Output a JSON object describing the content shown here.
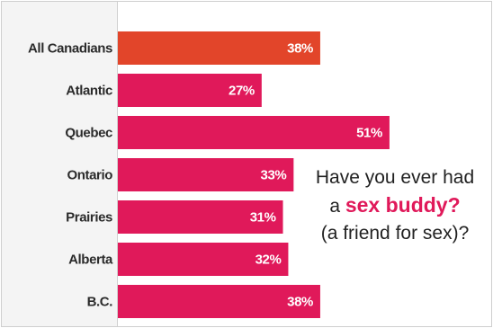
{
  "chart_data": {
    "type": "bar",
    "orientation": "horizontal",
    "categories": [
      "All Canadians",
      "Atlantic",
      "Quebec",
      "Ontario",
      "Prairies",
      "Alberta",
      "B.C."
    ],
    "values": [
      38,
      27,
      51,
      33,
      31,
      32,
      38
    ],
    "value_labels": [
      "38%",
      "27%",
      "51%",
      "33%",
      "31%",
      "32%",
      "38%"
    ],
    "unit": "%",
    "xlim": [
      0,
      51
    ],
    "grid": false,
    "legend": "none",
    "highlight_index": 0,
    "colors": {
      "highlight": "#e2452a",
      "bar": "#e0195a",
      "label": "#2b2b2b",
      "value_text": "#ffffff"
    }
  },
  "question": {
    "line1": "Have you ever had",
    "line2_prefix": "a ",
    "line2_highlight": "sex buddy?",
    "line3": "(a friend for sex)?"
  }
}
